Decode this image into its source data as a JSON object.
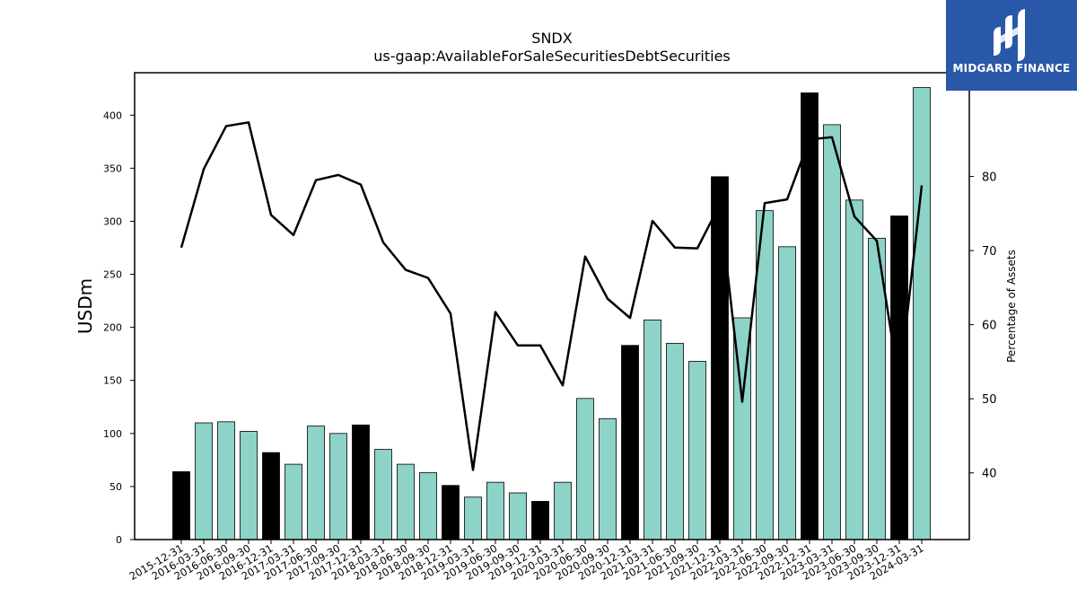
{
  "chart_data": {
    "type": "bar",
    "title": "SNDX",
    "subtitle": "us-gaap:AvailableForSaleSecuritiesDebtSecurities",
    "ylabel": "USDm",
    "y2label": "Percentage of Assets",
    "ylim": [
      0,
      440
    ],
    "y2lim": [
      31,
      94
    ],
    "yticks": [
      0,
      50,
      100,
      150,
      200,
      250,
      300,
      350,
      400
    ],
    "y2ticks": [
      40,
      50,
      60,
      70,
      80
    ],
    "categories": [
      "2015-12-31",
      "2016-03-31",
      "2016-06-30",
      "2016-09-30",
      "2016-12-31",
      "2017-03-31",
      "2017-06-30",
      "2017-09-30",
      "2017-12-31",
      "2018-03-31",
      "2018-06-30",
      "2018-09-30",
      "2018-12-31",
      "2019-03-31",
      "2019-06-30",
      "2019-09-30",
      "2019-12-31",
      "2020-03-31",
      "2020-06-30",
      "2020-09-30",
      "2020-12-31",
      "2021-03-31",
      "2021-06-30",
      "2021-09-30",
      "2021-12-31",
      "2022-03-31",
      "2022-06-30",
      "2022-09-30",
      "2022-12-31",
      "2023-03-31",
      "2023-06-30",
      "2023-09-30",
      "2023-12-31",
      "2024-03-31"
    ],
    "series": [
      {
        "type": "bar",
        "values": [
          64,
          110,
          111,
          102,
          82,
          71,
          107,
          100,
          108,
          85,
          71,
          63,
          51,
          40,
          54,
          44,
          36,
          54,
          133,
          114,
          183,
          207,
          185,
          168,
          342,
          209,
          310,
          276,
          421,
          391,
          320,
          284,
          305,
          426
        ],
        "colors_by_quarter": {
          "Q4": "#000000",
          "other": "#8dd3c7"
        }
      },
      {
        "type": "line",
        "axis": "right",
        "color": "#000000",
        "values": [
          70.4,
          81.0,
          86.8,
          87.3,
          74.8,
          72.1,
          79.5,
          80.2,
          78.9,
          71.1,
          67.4,
          66.3,
          61.5,
          40.4,
          61.7,
          57.2,
          57.2,
          51.8,
          69.2,
          63.5,
          60.9,
          74.0,
          70.4,
          70.3,
          76.2,
          49.6,
          76.4,
          76.9,
          85.0,
          85.3,
          74.6,
          71.3,
          51.8,
          78.8
        ]
      }
    ],
    "grid": false,
    "legend": "none"
  },
  "logo": {
    "text": "MIDGARD FINANCE",
    "color": "#2a58a8"
  }
}
